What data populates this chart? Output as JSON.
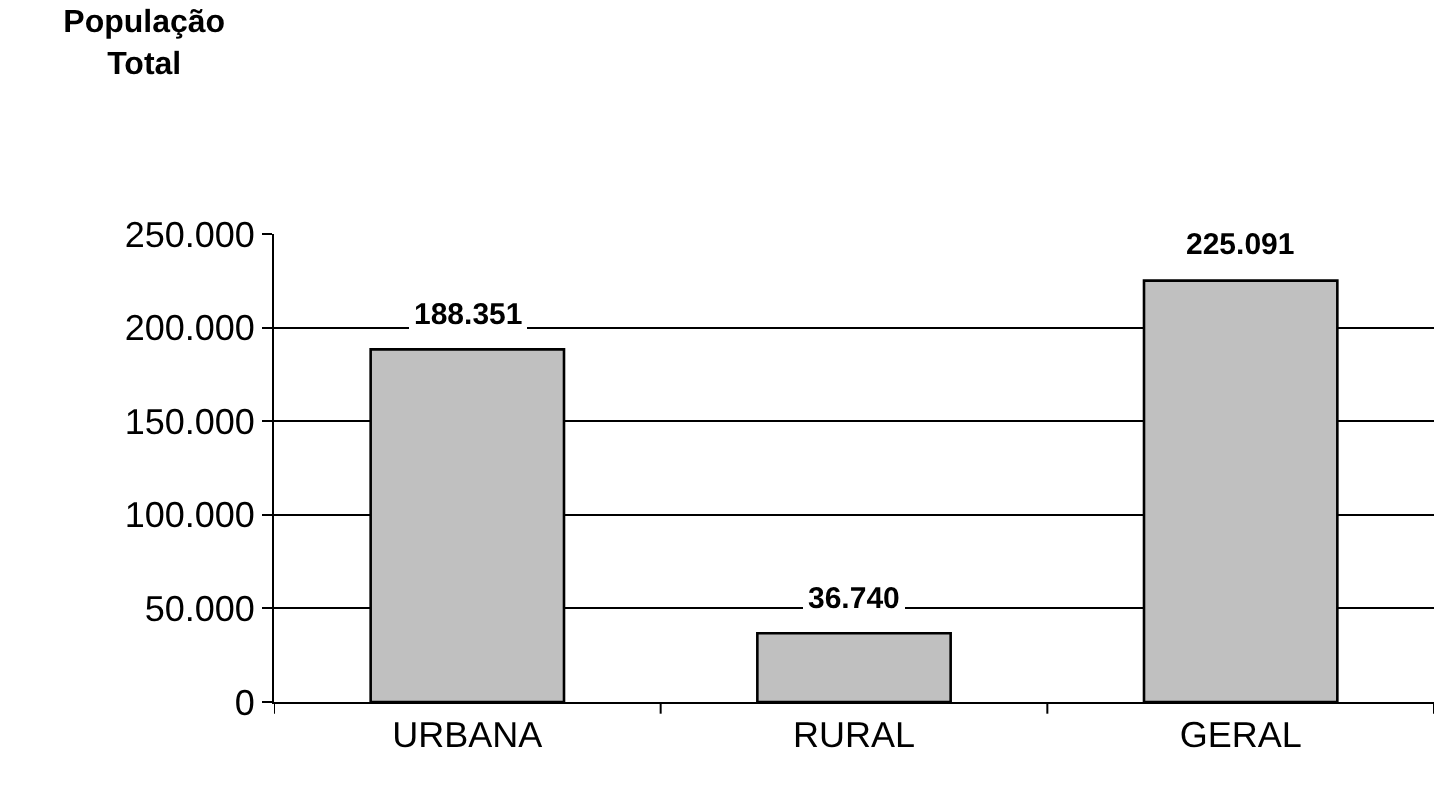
{
  "chart_data": {
    "type": "bar",
    "title": "População\nTotal",
    "categories": [
      "URBANA",
      "RURAL",
      "GERAL"
    ],
    "values": [
      188351,
      36740,
      225091
    ],
    "color": "#c0c0c0",
    "value_labels": [
      "188.351",
      "36.740",
      "225.091"
    ],
    "ylim": [
      0,
      250000
    ],
    "yticks": [
      {
        "value": 0,
        "label": "0"
      },
      {
        "value": 50000,
        "label": "50.000"
      },
      {
        "value": 100000,
        "label": "100.000"
      },
      {
        "value": 150000,
        "label": "150.000"
      },
      {
        "value": 200000,
        "label": "200.000"
      },
      {
        "value": 250000,
        "label": "250.000"
      }
    ],
    "grid": "y",
    "legend": false
  }
}
